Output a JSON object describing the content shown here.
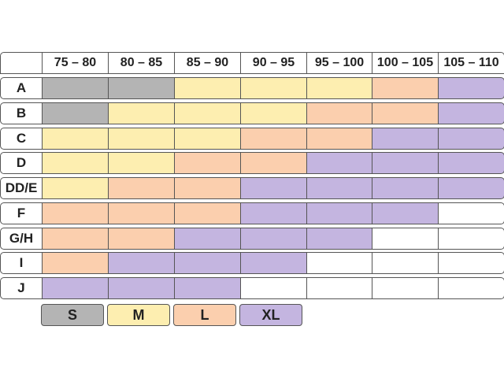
{
  "colors": {
    "S": "#b4b4b4",
    "M": "#fdeeb0",
    "L": "#fbcfae",
    "XL": "#c4b5e0",
    "empty": "#ffffff"
  },
  "chart": {
    "columns": [
      "75 – 80",
      "80 – 85",
      "85 – 90",
      "90 – 95",
      "95 – 100",
      "100 – 105",
      "105 – 110"
    ],
    "rows": [
      {
        "label": "A",
        "sizes": [
          "S",
          "S",
          "M",
          "M",
          "M",
          "L",
          "XL"
        ]
      },
      {
        "label": "B",
        "sizes": [
          "S",
          "M",
          "M",
          "M",
          "L",
          "L",
          "XL"
        ]
      },
      {
        "label": "C",
        "sizes": [
          "M",
          "M",
          "M",
          "L",
          "L",
          "XL",
          "XL"
        ]
      },
      {
        "label": "D",
        "sizes": [
          "M",
          "M",
          "L",
          "L",
          "XL",
          "XL",
          "XL"
        ]
      },
      {
        "label": "DD/E",
        "sizes": [
          "M",
          "L",
          "L",
          "XL",
          "XL",
          "XL",
          "XL"
        ]
      },
      {
        "label": "F",
        "sizes": [
          "L",
          "L",
          "L",
          "XL",
          "XL",
          "XL",
          ""
        ]
      },
      {
        "label": "G/H",
        "sizes": [
          "L",
          "L",
          "XL",
          "XL",
          "XL",
          "",
          ""
        ]
      },
      {
        "label": "I",
        "sizes": [
          "L",
          "XL",
          "XL",
          "XL",
          "",
          "",
          ""
        ]
      },
      {
        "label": "J",
        "sizes": [
          "XL",
          "XL",
          "XL",
          "",
          "",
          "",
          ""
        ]
      }
    ]
  },
  "legend": {
    "items": [
      {
        "key": "S",
        "label": "S"
      },
      {
        "key": "M",
        "label": "M"
      },
      {
        "key": "L",
        "label": "L"
      },
      {
        "key": "XL",
        "label": "XL"
      }
    ]
  }
}
